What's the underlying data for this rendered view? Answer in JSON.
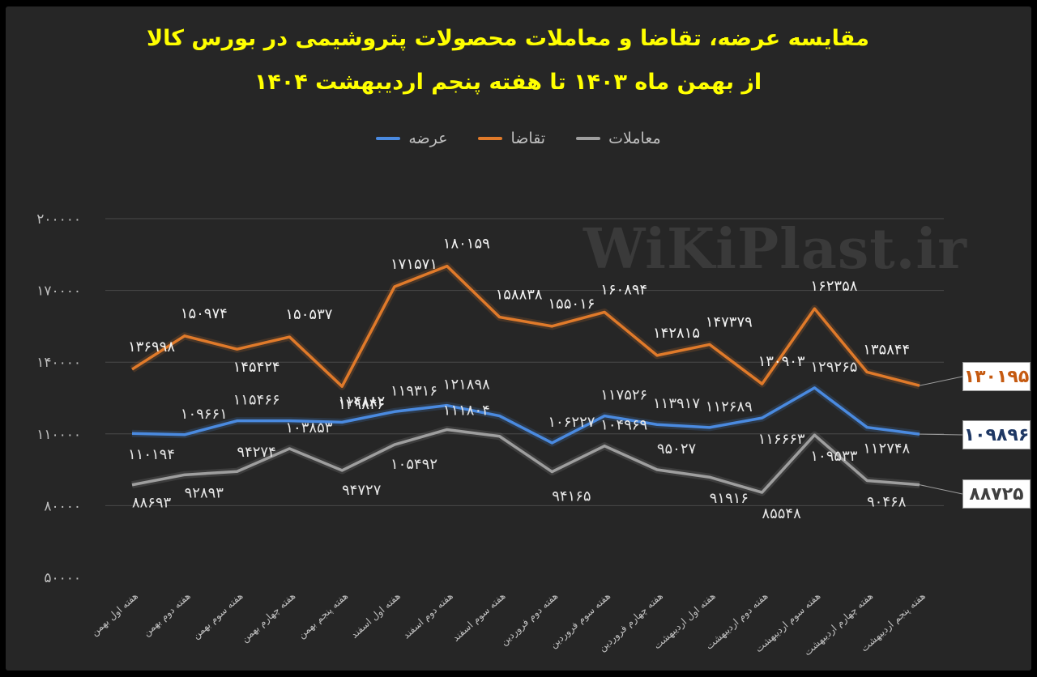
{
  "title": {
    "line1": "مقایسه عرضه، تقاضا و معاملات محصولات پتروشیمی در بورس کالا",
    "line2": "از بهمن ماه ۱۴۰۳ تا هفته پنجم اردیبهشت ۱۴۰۴"
  },
  "watermark": "WiKiPlast.ir",
  "colors": {
    "supply": "#4a8ae0",
    "demand": "#e07a2a",
    "trades": "#9e9e9e",
    "background": "#262626",
    "title": "#ffff00"
  },
  "chart_data": {
    "type": "line",
    "categories": [
      "هفته اول بهمن",
      "هفته دوم بهمن",
      "هفته سوم بهمن",
      "هفته چهارم بهمن",
      "هفته پنجم بهمن",
      "هفته اول اسفند",
      "هفته دوم اسفند",
      "هفته سوم اسفند",
      "هفته دوم فروردین",
      "هفته سوم فروردین",
      "هفته چهارم فروردین",
      "هفته اول اردیبهشت",
      "هفته دوم اردیبهشت",
      "هفته سوم اردیبهشت",
      "هفته چهارم اردیبهشت",
      "هفته پنجم اردیبهشت"
    ],
    "ylim": [
      50000,
      200000
    ],
    "yticks": [
      50000,
      80000,
      110000,
      140000,
      170000,
      200000
    ],
    "ytick_labels": [
      "۵۰۰۰۰",
      "۸۰۰۰۰",
      "۱۱۰۰۰۰",
      "۱۴۰۰۰۰",
      "۱۷۰۰۰۰",
      "۲۰۰۰۰۰"
    ],
    "legend_position": "top",
    "grid": true,
    "series": [
      {
        "key": "supply",
        "name": "عرضه",
        "values": [
          110194,
          109661,
          115466,
          115466,
          114882,
          119316,
          121898,
          117526,
          106227,
          117526,
          113917,
          112689,
          116663,
          129265,
          112748,
          109896
        ],
        "labels": [
          "۱۱۰۱۹۴",
          "۱۰۹۶۶۱",
          "۱۱۵۴۶۶",
          null,
          "۱۱۴۸۸۲",
          "۱۱۹۳۱۶",
          "۱۲۱۸۹۸",
          null,
          "۱۰۶۲۲۷",
          "۱۱۷۵۲۶",
          "۱۱۳۹۱۷",
          "۱۱۲۶۸۹",
          "۱۱۶۶۶۳",
          "۱۲۹۲۶۵",
          "۱۱۲۷۴۸",
          "۱۰۹۸۹۶"
        ]
      },
      {
        "key": "demand",
        "name": "تقاضا",
        "values": [
          136998,
          150974,
          145424,
          150537,
          129846,
          171571,
          180159,
          158838,
          155016,
          160894,
          142815,
          147379,
          130903,
          162358,
          135844,
          130195
        ],
        "labels": [
          "۱۳۶۹۹۸",
          "۱۵۰۹۷۴",
          "۱۴۵۴۲۴",
          "۱۵۰۵۳۷",
          "۱۲۹۸۴۶",
          "۱۷۱۵۷۱",
          "۱۸۰۱۵۹",
          "۱۵۸۸۳۸",
          "۱۵۵۰۱۶",
          "۱۶۰۸۹۴",
          "۱۴۲۸۱۵",
          "۱۴۷۳۷۹",
          "۱۳۰۹۰۳",
          "۱۶۲۳۵۸",
          "۱۳۵۸۴۴",
          "۱۳۰۱۹۵"
        ]
      },
      {
        "key": "trades",
        "name": "معاملات",
        "values": [
          88693,
          92893,
          94274,
          103853,
          94727,
          105492,
          111804,
          109000,
          94165,
          104969,
          95027,
          91916,
          85548,
          109533,
          90468,
          88725
        ],
        "labels": [
          "۸۸۶۹۳",
          "۹۲۸۹۳",
          "۹۴۲۷۴",
          "۱۰۳۸۵۳",
          "۹۴۷۲۷",
          "۱۰۵۴۹۲",
          "۱۱۱۸۰۴",
          null,
          "۹۴۱۶۵",
          "۱۰۴۹۶۹",
          "۹۵۰۲۷",
          "۹۱۹۱۶",
          "۸۵۵۴۸",
          "۱۰۹۵۳۳",
          "۹۰۴۶۸",
          "۸۸۷۲۵"
        ]
      }
    ]
  }
}
